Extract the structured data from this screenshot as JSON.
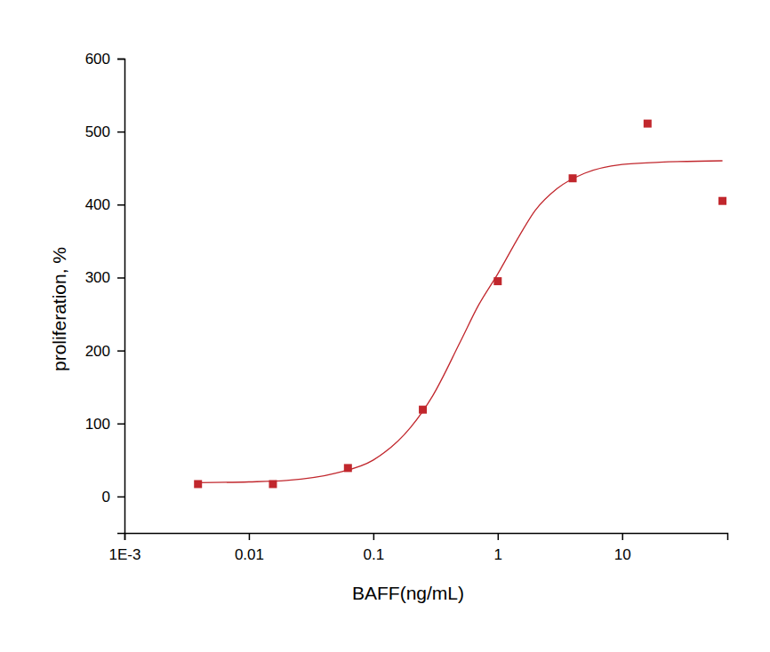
{
  "chart_data": {
    "type": "scatter",
    "x_label": "BAFF(ng/mL)",
    "y_label": "proliferation, %",
    "log": "x",
    "grid": false,
    "xlim": [
      0.001,
      70
    ],
    "xticks": [
      {
        "value": 0.001,
        "label": "1E-3"
      },
      0.01,
      0.1,
      1,
      10
    ],
    "ylim": [
      -50,
      600
    ],
    "yticks": [
      0,
      100,
      200,
      300,
      400,
      500,
      600
    ],
    "series": [
      {
        "type": "scatter",
        "marker": "square",
        "color": "#c1272d",
        "x": [
          0.0039,
          0.0156,
          0.0625,
          0.25,
          1,
          4,
          16,
          64
        ],
        "values": [
          17,
          17,
          39,
          119,
          295,
          436,
          511,
          405
        ]
      },
      {
        "type": "line",
        "line_style": "solid",
        "color": "#c1272d",
        "x": [
          0.0039,
          0.01,
          0.02,
          0.05,
          0.1,
          0.2,
          0.3,
          0.5,
          0.7,
          1,
          1.5,
          2,
          3,
          5,
          10,
          20,
          64
        ],
        "values": [
          19,
          20,
          22,
          32,
          50,
          95,
          138,
          212,
          262,
          305,
          358,
          392,
          422,
          443,
          455,
          458,
          460
        ]
      }
    ]
  }
}
